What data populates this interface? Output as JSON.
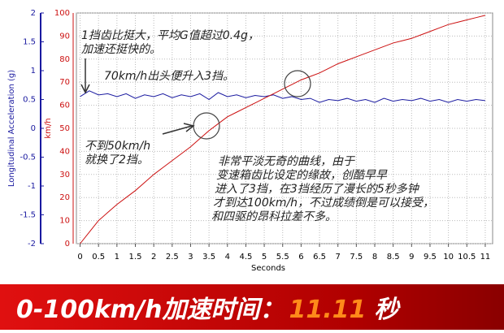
{
  "chart_data": {
    "type": "line",
    "x_label": "Seconds",
    "y_label": "Longitudinal Acceleration (g)",
    "y2_label": "km/h",
    "x": [
      0,
      0.25,
      0.5,
      0.75,
      1,
      1.25,
      1.5,
      1.75,
      2,
      2.25,
      2.5,
      2.75,
      3,
      3.25,
      3.5,
      3.75,
      4,
      4.25,
      4.5,
      4.75,
      5,
      5.25,
      5.5,
      5.75,
      6,
      6.25,
      6.5,
      6.75,
      7,
      7.25,
      7.5,
      7.75,
      8,
      8.25,
      8.5,
      8.75,
      9,
      9.25,
      9.5,
      9.75,
      10,
      10.25,
      10.5,
      10.75,
      11
    ],
    "series": [
      {
        "name": "Longitudinal Acceleration",
        "color": "#1a1aa0",
        "axis": "y",
        "values": [
          0.55,
          0.65,
          0.58,
          0.6,
          0.55,
          0.6,
          0.52,
          0.58,
          0.55,
          0.6,
          0.53,
          0.58,
          0.55,
          0.6,
          0.5,
          0.62,
          0.55,
          0.58,
          0.53,
          0.57,
          0.55,
          0.58,
          0.52,
          0.55,
          0.5,
          0.52,
          0.45,
          0.5,
          0.48,
          0.52,
          0.47,
          0.5,
          0.45,
          0.52,
          0.47,
          0.5,
          0.48,
          0.52,
          0.47,
          0.5,
          0.45,
          0.5,
          0.47,
          0.5,
          0.48
        ]
      },
      {
        "name": "Speed",
        "color": "#cc1010",
        "axis": "y2",
        "values": [
          0,
          5,
          10,
          13.5,
          17,
          20,
          23,
          26.5,
          30,
          33,
          36,
          39,
          42,
          45.5,
          49,
          52,
          55,
          57,
          59,
          61,
          63,
          65,
          67,
          69,
          71,
          72.5,
          74,
          76,
          78,
          79.5,
          81,
          82.5,
          84,
          85.5,
          87,
          88,
          89,
          90.5,
          92,
          93.5,
          95,
          96,
          97,
          98,
          99
        ]
      }
    ],
    "xlim": [
      -0.1,
      11.2
    ],
    "xticks": [
      0,
      0.5,
      1,
      1.5,
      2,
      2.5,
      3,
      3.5,
      4,
      4.5,
      5,
      5.5,
      6,
      6.5,
      7,
      7.5,
      8,
      8.5,
      9,
      9.5,
      10,
      10.5,
      11
    ],
    "ylim": [
      -2,
      2
    ],
    "yticks": [
      -2,
      -1.5,
      -1,
      -0.5,
      0,
      0.5,
      1,
      1.5,
      2
    ],
    "y2lim": [
      0,
      100
    ],
    "y2ticks": [
      0,
      10,
      20,
      30,
      40,
      50,
      60,
      70,
      80,
      90,
      100
    ],
    "grid": true,
    "annotations": [
      {
        "lines": [
          "1挡齿比挺大，平均G值超过0.4g，",
          "加速还挺快的。"
        ]
      },
      {
        "lines": [
          "70km/h出头便升入3挡。"
        ]
      },
      {
        "lines": [
          "不到50km/h",
          "就换了2挡。"
        ]
      },
      {
        "lines": [
          "非常平淡无奇的曲线，由于",
          "变速箱齿比设定的缘故，创酷早早",
          "进入了3挡，在3挡经历了漫长的5秒多钟",
          "才到达100km/h，不过成绩倒是可以接受，",
          "和四驱的昂科拉差不多。"
        ]
      }
    ]
  },
  "banner": {
    "label": "0-100km/h加速时间：",
    "value": "11.11",
    "unit": "秒"
  }
}
